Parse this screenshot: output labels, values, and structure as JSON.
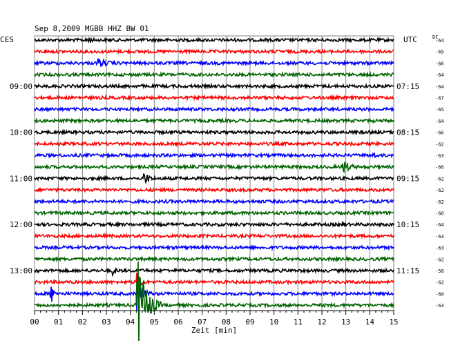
{
  "chart_data": {
    "type": "line",
    "title": "Sep 8,2009   MGBB HHZ BW 01",
    "left_label": "CES",
    "right_label": "UTC",
    "dc_label": "DC",
    "xlabel": "Zeit [min]",
    "x_ticks": [
      "00",
      "01",
      "02",
      "03",
      "04",
      "05",
      "06",
      "07",
      "08",
      "09",
      "10",
      "11",
      "12",
      "13",
      "14",
      "15"
    ],
    "xlim": [
      0,
      15
    ],
    "left_hour_labels": [
      {
        "row": 4,
        "label": "09:00"
      },
      {
        "row": 8,
        "label": "10:00"
      },
      {
        "row": 12,
        "label": "11:00"
      },
      {
        "row": 16,
        "label": "12:00"
      },
      {
        "row": 20,
        "label": "13:00"
      }
    ],
    "right_hour_labels": [
      {
        "row": 0,
        "label": ""
      },
      {
        "row": 4,
        "label": "07:15"
      },
      {
        "row": 8,
        "label": "08:15"
      },
      {
        "row": 12,
        "label": "09:15"
      },
      {
        "row": 16,
        "label": "10:15"
      },
      {
        "row": 20,
        "label": "11:15"
      }
    ],
    "row_colors": [
      "#000000",
      "#ff0000",
      "#0000ff",
      "#006400"
    ],
    "dc_values": [
      "-64",
      "-65",
      "-66",
      "-64",
      "-64",
      "-67",
      "-65",
      "-64",
      "-66",
      "-62",
      "-63",
      "-66",
      "-62",
      "-62",
      "-62",
      "-66",
      "-64",
      "-63",
      "-63",
      "-62",
      "-58",
      "-62",
      "-60",
      "-63"
    ],
    "events": [
      {
        "row": 0,
        "minute": 2.2,
        "amplitude": 0.55,
        "duration": 0.3
      },
      {
        "row": 2,
        "minute": 2.7,
        "amplitude": 0.35,
        "duration": 0.8
      },
      {
        "row": 10,
        "minute": 14.1,
        "amplitude": 0.25,
        "duration": 0.3
      },
      {
        "row": 11,
        "minute": 12.9,
        "amplitude": 0.6,
        "duration": 0.6
      },
      {
        "row": 12,
        "minute": 4.6,
        "amplitude": 0.45,
        "duration": 0.5
      },
      {
        "row": 16,
        "minute": 12.8,
        "amplitude": 0.35,
        "duration": 0.3
      },
      {
        "row": 20,
        "minute": 3.3,
        "amplitude": 0.3,
        "duration": 0.3
      },
      {
        "row": 21,
        "minute": 4.3,
        "amplitude": 0.9,
        "duration": 0.4
      },
      {
        "row": 22,
        "minute": 0.7,
        "amplitude": 0.8,
        "duration": 0.3
      },
      {
        "row": 22,
        "minute": 4.3,
        "amplitude": 1.5,
        "duration": 0.6
      },
      {
        "row": 23,
        "minute": 4.3,
        "amplitude": 5.0,
        "duration": 1.0
      }
    ]
  }
}
